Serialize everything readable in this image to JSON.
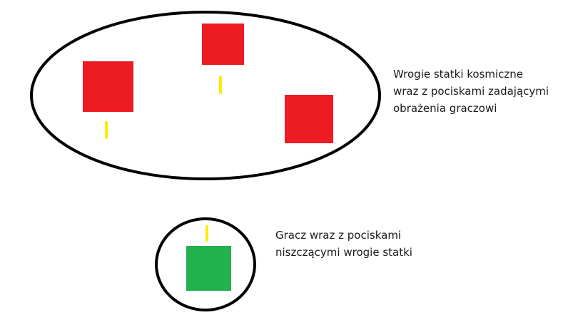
{
  "colors": {
    "background": "#ffffff",
    "outline": "#000000",
    "enemy": "#ed1c24",
    "player": "#22b14c",
    "bullet": "#ffea00"
  },
  "enemy_group": {
    "name": "enemy-group",
    "caption_lines": [
      "Wrogie statki kosmiczne",
      "wraz z pociskami zadającymi",
      "obrażenia graczowi"
    ],
    "ship_count": 3,
    "bullet_count": 2
  },
  "player_group": {
    "name": "player-group",
    "caption_lines": [
      "Gracz wraz z pociskami",
      "niszczącymi wrogie statki"
    ],
    "ship_count": 1,
    "bullet_count": 1
  }
}
